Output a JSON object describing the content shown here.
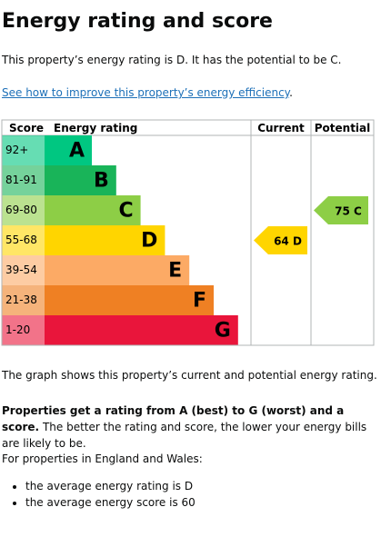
{
  "heading": "Energy rating and score",
  "intro": "This property’s energy rating is D. It has the potential to be C.",
  "link": {
    "text": "See how to improve this property’s energy efficiency",
    "suffix": "."
  },
  "graph": {
    "headers": [
      "Score",
      "Energy rating",
      "Current",
      "Potential"
    ],
    "bands": [
      {
        "score": "92+",
        "letter": "A",
        "color": "#00c781"
      },
      {
        "score": "81-91",
        "letter": "B",
        "color": "#19b459"
      },
      {
        "score": "69-80",
        "letter": "C",
        "color": "#8dce46"
      },
      {
        "score": "55-68",
        "letter": "D",
        "color": "#ffd500"
      },
      {
        "score": "39-54",
        "letter": "E",
        "color": "#fcaa65"
      },
      {
        "score": "21-38",
        "letter": "F",
        "color": "#ef8023"
      },
      {
        "score": "1-20",
        "letter": "G",
        "color": "#e9153b"
      }
    ],
    "current": {
      "value": 64,
      "letter": "D"
    },
    "potential": {
      "value": 75,
      "letter": "C"
    }
  },
  "graph_note": "The graph shows this property’s current and potential energy rating.",
  "rating_note": {
    "bold": "Properties get a rating from A (best) to G (worst) and a score.",
    "text": "The better the rating and score, the lower your energy bills are likely to be."
  },
  "averages": {
    "intro": "For properties in England and Wales:",
    "items": [
      "the average energy rating is D",
      "the average energy score is 60"
    ]
  }
}
